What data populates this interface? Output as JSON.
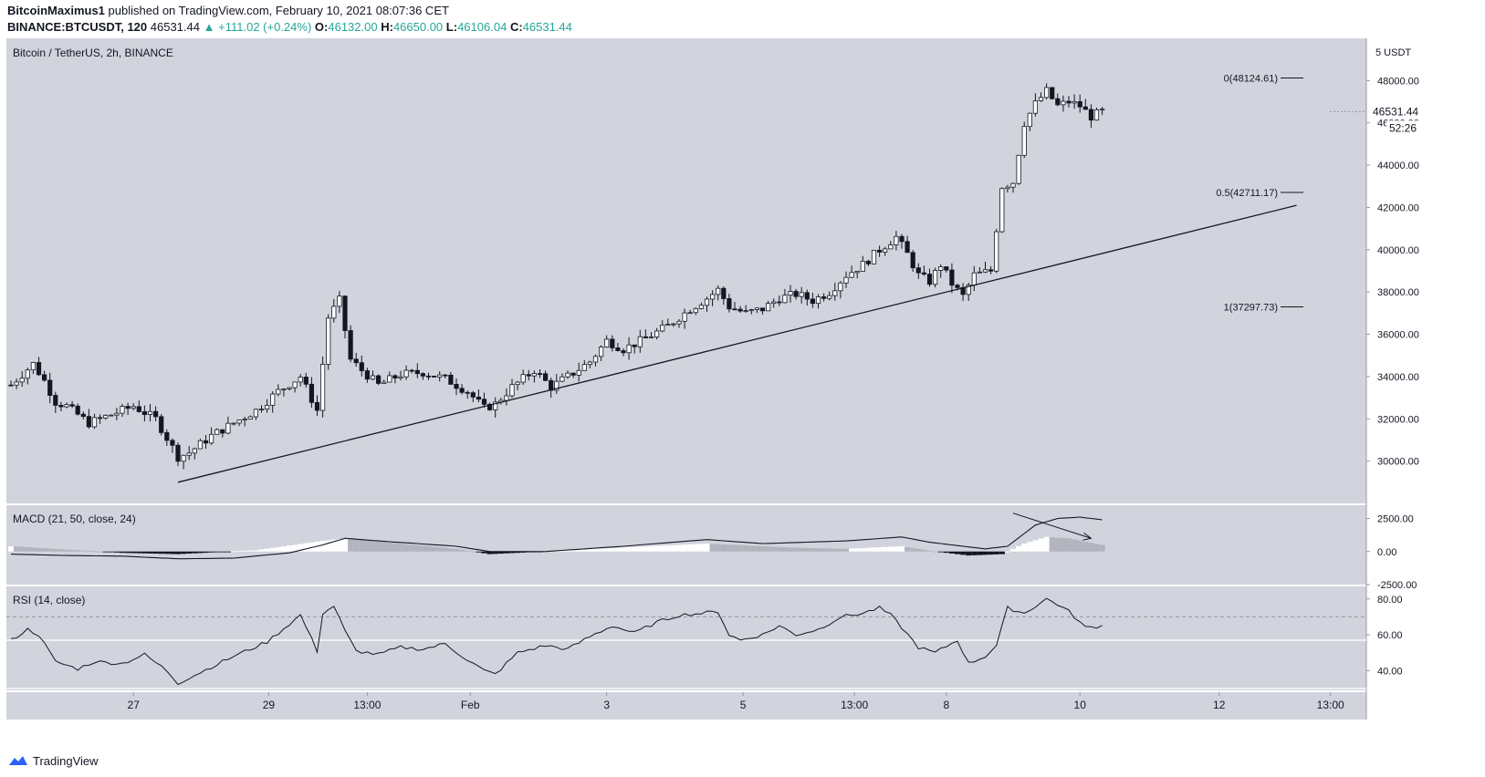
{
  "header": {
    "author": "BitcoinMaximus1",
    "published_text": "published on TradingView.com, February 10, 2021 08:07:36 CET",
    "symbol": "BINANCE:BTCUSDT, 120",
    "last": "46531.44",
    "change": "+111.02 (+0.24%)",
    "o_label": "O:",
    "o_value": "46132.00",
    "h_label": "H:",
    "h_value": "46650.00",
    "l_label": "L:",
    "l_value": "46106.04",
    "c_label": "C:",
    "c_value": "46531.44"
  },
  "footer": {
    "brand": "TradingView"
  },
  "colors": {
    "plot_bg": "#d1d4dc",
    "up": "#ffffff",
    "down": "#131722",
    "line": "#131722",
    "hist_pos": "#ffffff",
    "hist_fade": "#b2b5be",
    "hist_neg": "#131722"
  },
  "chart_data": [
    {
      "type": "candlestick",
      "title": "Bitcoin / TetherUS, 2h, BINANCE",
      "y_unit_label": "USDT",
      "y_unit_prefix": "5",
      "ylim": [
        28000,
        50000
      ],
      "y_ticks": [
        30000,
        32000,
        34000,
        36000,
        38000,
        40000,
        42000,
        44000,
        46000,
        48000
      ],
      "y_tick_labels": [
        "30000.00",
        "32000.00",
        "34000.00",
        "36000.00",
        "38000.00",
        "40000.00",
        "42000.00",
        "44000.00",
        "46000.00",
        "48000.00"
      ],
      "x_tick_labels": [
        "27",
        "29",
        "13:00",
        "Feb",
        "3",
        "5",
        "13:00",
        "8",
        "10",
        "12",
        "13:00"
      ],
      "last_price_label": "46531.44",
      "countdown_label": "52:26",
      "anchors": [
        [
          0,
          33600
        ],
        [
          4,
          34600
        ],
        [
          6,
          33800
        ],
        [
          8,
          32800
        ],
        [
          10,
          32600
        ],
        [
          14,
          31800
        ],
        [
          18,
          32200
        ],
        [
          22,
          32600
        ],
        [
          26,
          32000
        ],
        [
          30,
          30200
        ],
        [
          32,
          30400
        ],
        [
          36,
          31200
        ],
        [
          40,
          31800
        ],
        [
          44,
          32400
        ],
        [
          48,
          33300
        ],
        [
          52,
          34000
        ],
        [
          55,
          32400
        ],
        [
          57,
          36800
        ],
        [
          59,
          37600
        ],
        [
          61,
          34800
        ],
        [
          63,
          34300
        ],
        [
          66,
          33600
        ],
        [
          70,
          34100
        ],
        [
          74,
          34200
        ],
        [
          78,
          33900
        ],
        [
          82,
          33300
        ],
        [
          85,
          32500
        ],
        [
          87,
          32700
        ],
        [
          90,
          33500
        ],
        [
          94,
          34300
        ],
        [
          97,
          33500
        ],
        [
          100,
          34000
        ],
        [
          104,
          34700
        ],
        [
          107,
          35700
        ],
        [
          110,
          35300
        ],
        [
          114,
          35800
        ],
        [
          118,
          36400
        ],
        [
          122,
          37200
        ],
        [
          125,
          37700
        ],
        [
          127,
          38100
        ],
        [
          129,
          37300
        ],
        [
          132,
          37000
        ],
        [
          135,
          37200
        ],
        [
          138,
          37700
        ],
        [
          141,
          37900
        ],
        [
          144,
          37600
        ],
        [
          147,
          38000
        ],
        [
          150,
          38800
        ],
        [
          153,
          39300
        ],
        [
          156,
          40000
        ],
        [
          159,
          40600
        ],
        [
          161,
          39800
        ],
        [
          163,
          38800
        ],
        [
          165,
          38500
        ],
        [
          167,
          39300
        ],
        [
          169,
          38400
        ],
        [
          171,
          37800
        ],
        [
          173,
          38800
        ],
        [
          176,
          39000
        ],
        [
          178,
          43000
        ],
        [
          180,
          43200
        ],
        [
          182,
          46000
        ],
        [
          184,
          46900
        ],
        [
          186,
          47500
        ],
        [
          188,
          46800
        ],
        [
          190,
          47000
        ],
        [
          192,
          46800
        ],
        [
          194,
          46300
        ],
        [
          196,
          46531
        ]
      ],
      "trendline": {
        "from": [
          30,
          29000
        ],
        "to": [
          226,
          41900
        ]
      },
      "fib_levels": [
        {
          "label": "0(48124.61)",
          "value": 48124.61
        },
        {
          "label": "0.5(42711.17)",
          "value": 42711.17
        },
        {
          "label": "1(37297.73)",
          "value": 37297.73
        }
      ]
    },
    {
      "type": "histogram+line",
      "title": "MACD (21, 50, close, 24)",
      "ylim": [
        -2500,
        3500
      ],
      "y_tick_labels": [
        "2500.00",
        "0.00",
        "-2500.00"
      ],
      "y_ticks": [
        2500,
        0,
        -2500
      ],
      "macd_anchors": [
        [
          0,
          -200
        ],
        [
          10,
          -300
        ],
        [
          20,
          -350
        ],
        [
          30,
          -550
        ],
        [
          40,
          -500
        ],
        [
          50,
          -100
        ],
        [
          56,
          500
        ],
        [
          60,
          1000
        ],
        [
          66,
          800
        ],
        [
          80,
          400
        ],
        [
          86,
          0
        ],
        [
          96,
          0
        ],
        [
          110,
          400
        ],
        [
          125,
          900
        ],
        [
          135,
          600
        ],
        [
          150,
          800
        ],
        [
          160,
          1100
        ],
        [
          165,
          700
        ],
        [
          175,
          200
        ],
        [
          179,
          400
        ],
        [
          184,
          2000
        ],
        [
          188,
          2500
        ],
        [
          192,
          2600
        ],
        [
          196,
          2400
        ]
      ],
      "hist_anchors": [
        [
          0,
          400
        ],
        [
          8,
          200
        ],
        [
          20,
          -100
        ],
        [
          30,
          -200
        ],
        [
          44,
          100
        ],
        [
          56,
          800
        ],
        [
          60,
          1000
        ],
        [
          70,
          600
        ],
        [
          80,
          200
        ],
        [
          86,
          -200
        ],
        [
          96,
          0
        ],
        [
          110,
          300
        ],
        [
          125,
          600
        ],
        [
          140,
          300
        ],
        [
          150,
          200
        ],
        [
          160,
          400
        ],
        [
          166,
          0
        ],
        [
          172,
          -300
        ],
        [
          178,
          -200
        ],
        [
          182,
          600
        ],
        [
          186,
          1100
        ],
        [
          190,
          1000
        ],
        [
          196,
          500
        ]
      ],
      "divergence_arrow": {
        "from": [
          180,
          2900
        ],
        "to": [
          194,
          1000
        ]
      }
    },
    {
      "type": "line",
      "title": "RSI (14, close)",
      "ylim": [
        29,
        87
      ],
      "y_ticks": [
        80,
        60,
        40
      ],
      "y_tick_labels": [
        "80.00",
        "60.00",
        "40.00"
      ],
      "bands": [
        70,
        60,
        30
      ],
      "anchors": [
        [
          0,
          57
        ],
        [
          3,
          63
        ],
        [
          5,
          60
        ],
        [
          8,
          45
        ],
        [
          12,
          41
        ],
        [
          15,
          45
        ],
        [
          20,
          44
        ],
        [
          24,
          49
        ],
        [
          28,
          40
        ],
        [
          30,
          33
        ],
        [
          34,
          39
        ],
        [
          40,
          48
        ],
        [
          46,
          56
        ],
        [
          52,
          71
        ],
        [
          55,
          51
        ],
        [
          56,
          72
        ],
        [
          58,
          76
        ],
        [
          60,
          62
        ],
        [
          62,
          51
        ],
        [
          66,
          49
        ],
        [
          70,
          53
        ],
        [
          74,
          52
        ],
        [
          78,
          55
        ],
        [
          82,
          46
        ],
        [
          85,
          40
        ],
        [
          87,
          38
        ],
        [
          91,
          50
        ],
        [
          96,
          54
        ],
        [
          100,
          52
        ],
        [
          104,
          59
        ],
        [
          108,
          65
        ],
        [
          112,
          61
        ],
        [
          116,
          67
        ],
        [
          120,
          71
        ],
        [
          124,
          72
        ],
        [
          127,
          73
        ],
        [
          129,
          60
        ],
        [
          131,
          57
        ],
        [
          135,
          60
        ],
        [
          138,
          65
        ],
        [
          141,
          60
        ],
        [
          145,
          63
        ],
        [
          149,
          70
        ],
        [
          153,
          72
        ],
        [
          156,
          75
        ],
        [
          158,
          71
        ],
        [
          160,
          64
        ],
        [
          163,
          53
        ],
        [
          166,
          50
        ],
        [
          170,
          57
        ],
        [
          172,
          44
        ],
        [
          175,
          48
        ],
        [
          177,
          54
        ],
        [
          179,
          75
        ],
        [
          182,
          72
        ],
        [
          186,
          80
        ],
        [
          188,
          77
        ],
        [
          190,
          73
        ],
        [
          193,
          64
        ],
        [
          196,
          65
        ]
      ]
    }
  ]
}
